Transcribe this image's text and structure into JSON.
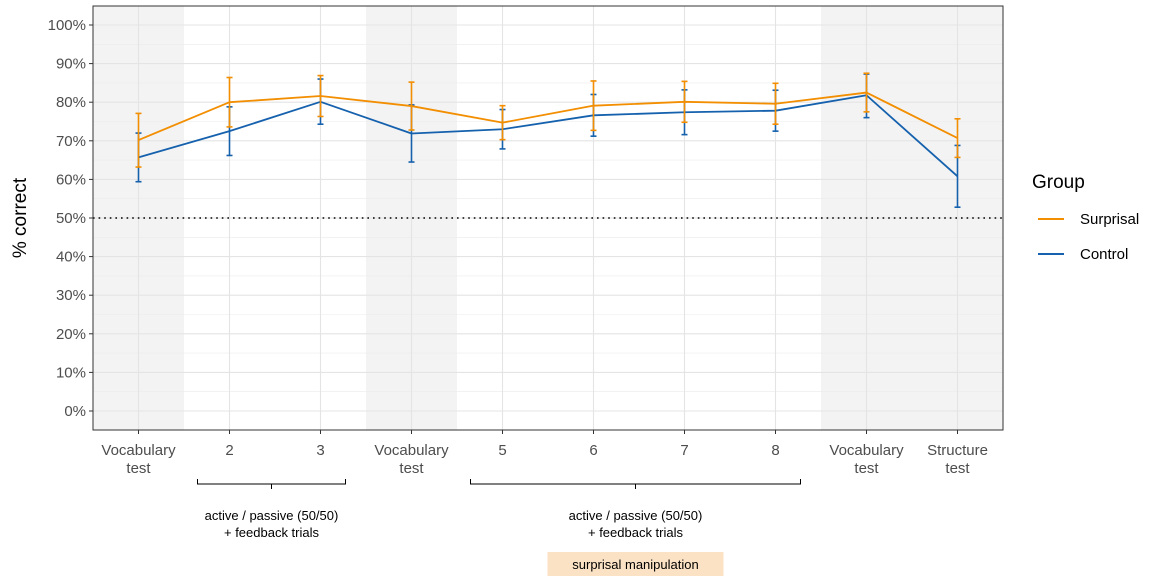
{
  "chart_data": {
    "type": "line",
    "ylabel": "% correct",
    "ylim": [
      0,
      100
    ],
    "y_ticks": [
      "0%",
      "10%",
      "20%",
      "30%",
      "40%",
      "50%",
      "60%",
      "70%",
      "80%",
      "90%",
      "100%"
    ],
    "categories": [
      [
        "Vocabulary",
        "test"
      ],
      [
        "2"
      ],
      [
        "3"
      ],
      [
        "Vocabulary",
        "test"
      ],
      [
        "5"
      ],
      [
        "6"
      ],
      [
        "7"
      ],
      [
        "8"
      ],
      [
        "Vocabulary",
        "test"
      ],
      [
        "Structure",
        "test"
      ]
    ],
    "shaded_categories": [
      0,
      3,
      8,
      9
    ],
    "reference_line": 50,
    "grid": true,
    "legend_position": "right",
    "legend_title": "Group",
    "series": [
      {
        "name": "Surprisal",
        "color": "#F28E00",
        "values": [
          70.2,
          80.0,
          81.6,
          79.0,
          74.7,
          79.1,
          80.1,
          79.6,
          82.5,
          70.7
        ],
        "err_low": [
          63.2,
          73.6,
          76.3,
          72.8,
          70.3,
          72.7,
          74.8,
          74.3,
          77.5,
          65.7
        ],
        "err_high": [
          77.1,
          86.4,
          86.9,
          85.2,
          79.1,
          85.5,
          85.4,
          84.9,
          87.5,
          75.7
        ]
      },
      {
        "name": "Control",
        "color": "#1561AD",
        "values": [
          65.7,
          72.5,
          80.1,
          71.9,
          73.0,
          76.6,
          77.4,
          77.8,
          81.8,
          60.8
        ],
        "err_low": [
          59.4,
          66.2,
          74.3,
          64.5,
          67.9,
          71.2,
          71.6,
          72.5,
          76.0,
          52.8
        ],
        "err_high": [
          72.0,
          78.8,
          86.0,
          79.3,
          78.1,
          82.0,
          83.2,
          83.1,
          87.3,
          68.8
        ]
      }
    ],
    "annotations": [
      {
        "id": "group1",
        "from_category": 1,
        "to_category": 2,
        "lines": [
          "active / passive (50/50)",
          "+ feedback trials"
        ]
      },
      {
        "id": "group2",
        "from_category": 4,
        "to_category": 7,
        "lines": [
          "active / passive (50/50)",
          "+ feedback trials"
        ],
        "badge": "surprisal manipulation",
        "badge_color": "#FBE2C5"
      }
    ]
  }
}
